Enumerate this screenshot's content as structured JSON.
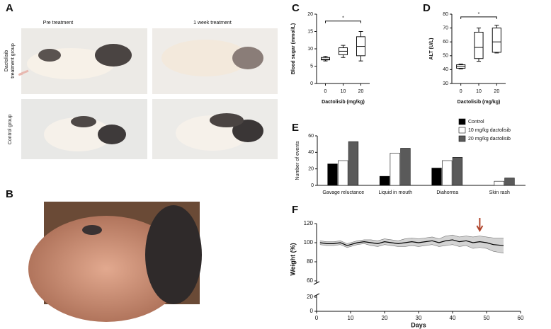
{
  "figure": {
    "panel_a": {
      "label": "A",
      "columns": [
        "Pre treatment",
        "1 week treatment"
      ],
      "rows": [
        [
          "Dactolisib",
          "treatment group"
        ],
        [
          "Control group"
        ]
      ]
    },
    "panel_b": {
      "label": "B"
    }
  },
  "chart_data": [
    {
      "type": "box",
      "label": "C",
      "ylabel": "Blood sugar (mmol/L)",
      "xlabel": "Dactolisib (mg/kg)",
      "categories": [
        "0",
        "10",
        "20"
      ],
      "ylim": [
        0,
        20
      ],
      "yticks": [
        0,
        5,
        10,
        15,
        20
      ],
      "boxes": [
        {
          "min": 6.5,
          "q1": 6.8,
          "median": 7.0,
          "q3": 7.5,
          "max": 7.8
        },
        {
          "min": 7.5,
          "q1": 8.3,
          "median": 9.3,
          "q3": 10.3,
          "max": 11
        },
        {
          "min": 6.5,
          "q1": 8,
          "median": 10.7,
          "q3": 13.5,
          "max": 15
        }
      ],
      "significance": {
        "label": "*",
        "y": 18
      }
    },
    {
      "type": "box",
      "label": "D",
      "ylabel": "ALT (U/L)",
      "xlabel": "Dactolisib (mg/kg)",
      "categories": [
        "0",
        "10",
        "20"
      ],
      "ylim": [
        30,
        80
      ],
      "yticks": [
        30,
        40,
        50,
        60,
        70,
        80
      ],
      "boxes": [
        {
          "min": 40.5,
          "q1": 41,
          "median": 42.5,
          "q3": 43.5,
          "max": 44
        },
        {
          "min": 46,
          "q1": 48,
          "median": 56,
          "q3": 67,
          "max": 70
        },
        {
          "min": 52,
          "q1": 52.5,
          "median": 60,
          "q3": 70,
          "max": 72
        }
      ],
      "significance": {
        "label": "*",
        "y": 78
      }
    },
    {
      "type": "bar",
      "label": "E",
      "ylabel": "Number of events",
      "categories": [
        "Gavage reluctance",
        "Liquid in mouth",
        "Diahorrea",
        "Skin rash"
      ],
      "ylim": [
        0,
        60
      ],
      "yticks": [
        0,
        20,
        40,
        60
      ],
      "series": [
        {
          "name": "Control",
          "color": "#000000",
          "values": [
            26,
            11,
            21,
            0
          ]
        },
        {
          "name": "10 mg/kg dactolisib",
          "color": "#ffffff",
          "values": [
            30,
            39,
            30,
            5
          ]
        },
        {
          "name": "20 mg/kg dactolisib",
          "color": "#5a5a5a",
          "values": [
            53,
            45,
            34,
            9
          ]
        }
      ],
      "legend": "top-right"
    },
    {
      "type": "line",
      "label": "F",
      "ylabel": "Weight (%)",
      "xlabel": "Days",
      "xlim": [
        0,
        60
      ],
      "xticks": [
        0,
        10,
        20,
        30,
        40,
        50,
        60
      ],
      "ylim": [
        0,
        120
      ],
      "yticks": [
        0,
        20,
        60,
        80,
        100,
        120
      ],
      "axis_break": [
        20,
        60
      ],
      "color": "#000000",
      "band_color": "#c8c8c8",
      "arrow_color": "#b0452c",
      "arrow_x": 48,
      "x": [
        1,
        3,
        5,
        7,
        9,
        10,
        12,
        14,
        16,
        18,
        20,
        22,
        24,
        26,
        28,
        30,
        32,
        34,
        36,
        38,
        40,
        42,
        44,
        46,
        48,
        50,
        52,
        55
      ],
      "values": [
        100,
        99,
        99,
        100,
        97,
        98,
        100,
        101,
        100,
        99,
        101,
        100,
        99,
        100,
        101,
        100,
        101,
        102,
        100,
        102,
        103,
        101,
        102,
        100,
        101,
        100,
        98,
        97
      ],
      "upper": [
        102,
        101,
        101,
        102,
        99,
        100,
        102,
        103,
        103,
        102,
        104,
        103,
        102,
        104,
        105,
        104,
        105,
        106,
        104,
        107,
        108,
        106,
        107,
        106,
        107,
        106,
        105,
        105
      ],
      "lower": [
        98,
        97,
        97,
        98,
        95,
        96,
        98,
        99,
        97,
        96,
        98,
        97,
        96,
        96,
        97,
        96,
        97,
        98,
        96,
        97,
        98,
        96,
        97,
        94,
        95,
        94,
        91,
        89
      ]
    }
  ]
}
